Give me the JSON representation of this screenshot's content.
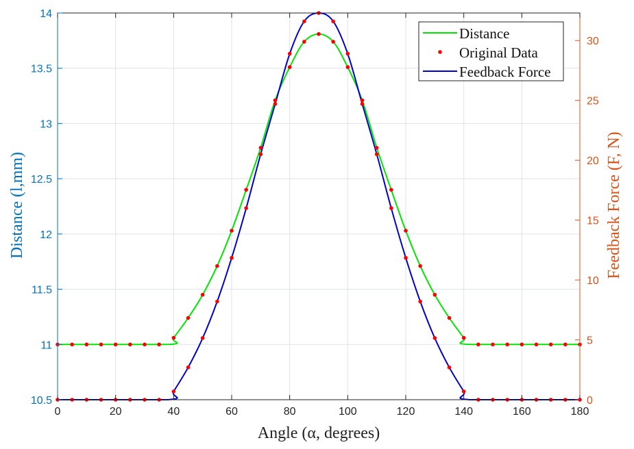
{
  "chart_data": {
    "type": "line",
    "title": "",
    "xlabel": "Angle (α, degrees)",
    "ylabel": "Distance (l,mm)",
    "ylabel_right": "Feedback Force (F, N)",
    "xlim": [
      0,
      180
    ],
    "ylim": [
      10.5,
      14
    ],
    "ylim_right": [
      0,
      32.3
    ],
    "xticks": [
      "0",
      "20",
      "40",
      "60",
      "80",
      "100",
      "120",
      "140",
      "160",
      "180"
    ],
    "yticks": [
      "10.5",
      "11",
      "11.5",
      "12",
      "12.5",
      "13",
      "13.5",
      "14"
    ],
    "yticks_right": [
      "0",
      "5",
      "10",
      "15",
      "20",
      "25",
      "30"
    ],
    "grid": true,
    "legend_position": "top-right",
    "colors": {
      "left_axis": "#0072BD",
      "right_axis": "#D95319",
      "distance": "#00E600",
      "force": "#0000D0",
      "points": "#FF0000"
    },
    "legend": [
      "Distance",
      "Original Data",
      "Feedback Force"
    ],
    "x": [
      0,
      5,
      10,
      15,
      20,
      25,
      30,
      35,
      40,
      45,
      50,
      55,
      60,
      65,
      70,
      75,
      80,
      85,
      90,
      95,
      100,
      105,
      110,
      115,
      120,
      125,
      130,
      135,
      140,
      145,
      150,
      155,
      160,
      165,
      170,
      175,
      180
    ],
    "series": [
      {
        "name": "Distance",
        "axis": "left",
        "curve_x": [
          0,
          38,
          40,
          45,
          50,
          55,
          60,
          65,
          70,
          75,
          80,
          85,
          90,
          95,
          100,
          105,
          110,
          115,
          120,
          125,
          130,
          135,
          140,
          142,
          180
        ],
        "curve_y": [
          11,
          11,
          11.06,
          11.24,
          11.45,
          11.71,
          12.03,
          12.4,
          12.78,
          13.21,
          13.51,
          13.74,
          13.81,
          13.74,
          13.51,
          13.21,
          12.78,
          12.4,
          12.03,
          11.71,
          11.45,
          11.24,
          11.06,
          11,
          11
        ],
        "values": [
          11,
          11,
          11,
          11,
          11,
          11,
          11,
          11,
          11.06,
          11.24,
          11.45,
          11.71,
          12.03,
          12.4,
          12.78,
          13.21,
          13.51,
          13.74,
          13.81,
          13.74,
          13.51,
          13.21,
          12.78,
          12.4,
          12.03,
          11.71,
          11.45,
          11.24,
          11.06,
          11,
          11,
          11,
          11,
          11,
          11,
          11,
          11
        ]
      },
      {
        "name": "Feedback Force",
        "axis": "right",
        "curve_x": [
          0,
          38,
          40,
          45,
          50,
          55,
          60,
          65,
          70,
          75,
          80,
          85,
          90,
          95,
          100,
          105,
          110,
          115,
          120,
          125,
          130,
          135,
          140,
          142,
          180
        ],
        "curve_y": [
          0,
          0,
          0.69,
          2.7,
          5.15,
          8.2,
          11.85,
          16.0,
          20.5,
          24.7,
          28.9,
          31.6,
          32.3,
          31.6,
          28.9,
          24.7,
          20.5,
          16.0,
          11.85,
          8.2,
          5.15,
          2.7,
          0.69,
          0,
          0
        ],
        "values": [
          0,
          0,
          0,
          0,
          0,
          0,
          0,
          0,
          0.69,
          2.7,
          5.15,
          8.2,
          11.85,
          16.0,
          20.5,
          24.7,
          28.9,
          31.6,
          32.3,
          31.6,
          28.9,
          24.7,
          20.5,
          16.0,
          11.85,
          8.2,
          5.15,
          2.7,
          0.69,
          0,
          0,
          0,
          0,
          0,
          0,
          0,
          0
        ]
      }
    ]
  }
}
